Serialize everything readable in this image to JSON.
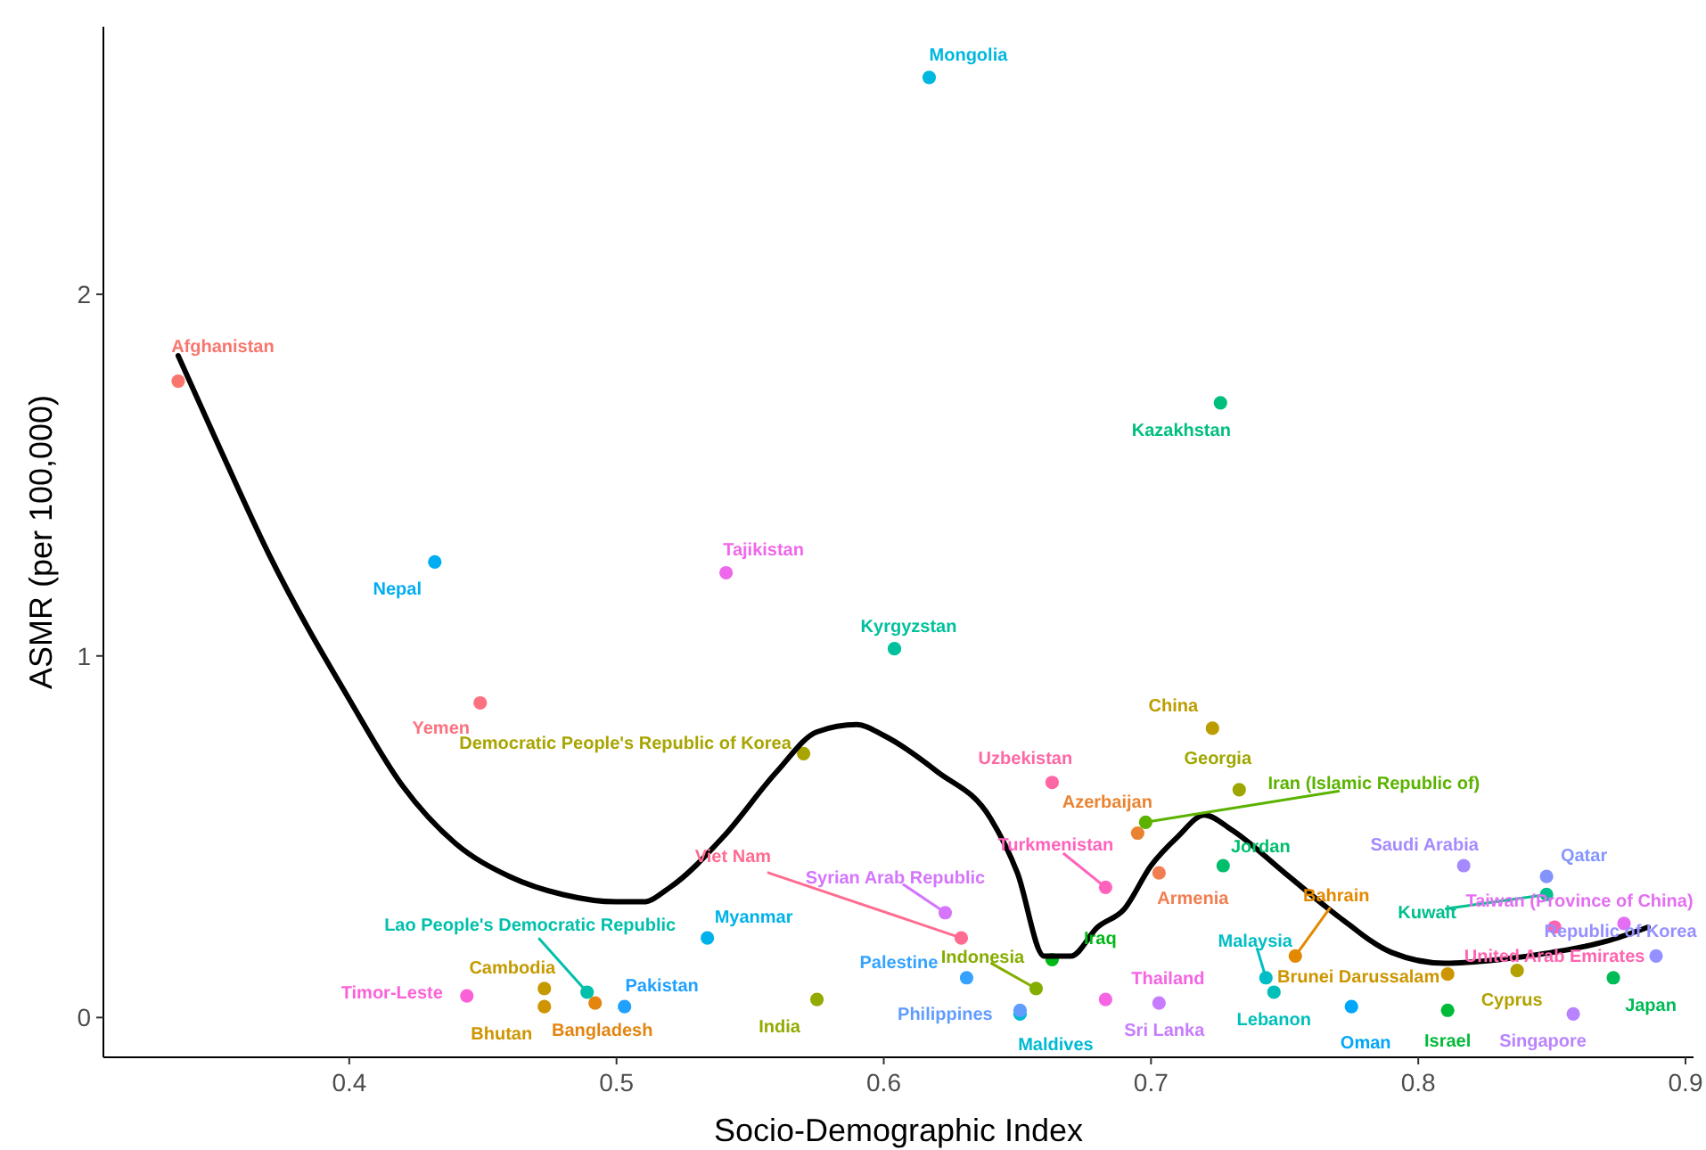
{
  "chart_data": {
    "type": "scatter",
    "xlabel": "Socio-Demographic Index",
    "ylabel": "ASMR (per 100,000)",
    "xlim": [
      0.308,
      0.903
    ],
    "ylim": [
      -0.11,
      2.74
    ],
    "xticks": [
      0.4,
      0.5,
      0.6,
      0.7,
      0.8,
      0.9
    ],
    "yticks": [
      0,
      1,
      2
    ],
    "marker": "circle",
    "series": [
      {
        "name": "Afghanistan",
        "color": "#f8766d",
        "x": [
          0.336
        ],
        "values": [
          1.76
        ]
      },
      {
        "name": "Armenia",
        "color": "#f17e50",
        "x": [
          0.703
        ],
        "values": [
          0.4
        ]
      },
      {
        "name": "Azerbaijan",
        "color": "#ea8331",
        "x": [
          0.695
        ],
        "values": [
          0.51
        ]
      },
      {
        "name": "Bahrain",
        "color": "#e38900",
        "x": [
          0.754
        ],
        "values": [
          0.17
        ]
      },
      {
        "name": "Bangladesh",
        "color": "#e3850f",
        "x": [
          0.492
        ],
        "values": [
          0.04
        ]
      },
      {
        "name": "Bhutan",
        "color": "#cf9500",
        "x": [
          0.473
        ],
        "values": [
          0.03
        ]
      },
      {
        "name": "Brunei Darussalam",
        "color": "#cd9600",
        "x": [
          0.811
        ],
        "values": [
          0.12
        ]
      },
      {
        "name": "Cambodia",
        "color": "#c49a00",
        "x": [
          0.473
        ],
        "values": [
          0.08
        ]
      },
      {
        "name": "China",
        "color": "#bb9d00",
        "x": [
          0.723
        ],
        "values": [
          0.8
        ]
      },
      {
        "name": "Cyprus",
        "color": "#b2a100",
        "x": [
          0.837
        ],
        "values": [
          0.13
        ]
      },
      {
        "name": "Democratic People's Republic of Korea",
        "color": "#a8a400",
        "x": [
          0.57
        ],
        "values": [
          0.73
        ]
      },
      {
        "name": "Georgia",
        "color": "#9ea700",
        "x": [
          0.733
        ],
        "values": [
          0.63
        ]
      },
      {
        "name": "India",
        "color": "#93aa00",
        "x": [
          0.575
        ],
        "values": [
          0.05
        ]
      },
      {
        "name": "Indonesia",
        "color": "#85ad00",
        "x": [
          0.657
        ],
        "values": [
          0.08
        ]
      },
      {
        "name": "Iran (Islamic Republic of)",
        "color": "#5bb300",
        "x": [
          0.698
        ],
        "values": [
          0.54
        ]
      },
      {
        "name": "Iraq",
        "color": "#00b816",
        "x": [
          0.663
        ],
        "values": [
          0.16
        ]
      },
      {
        "name": "Israel",
        "color": "#00ba38",
        "x": [
          0.811
        ],
        "values": [
          0.02
        ]
      },
      {
        "name": "Japan",
        "color": "#00bc56",
        "x": [
          0.873
        ],
        "values": [
          0.11
        ]
      },
      {
        "name": "Jordan",
        "color": "#00be6c",
        "x": [
          0.727
        ],
        "values": [
          0.42
        ]
      },
      {
        "name": "Kazakhstan",
        "color": "#00bf7d",
        "x": [
          0.726
        ],
        "values": [
          1.7
        ]
      },
      {
        "name": "Kuwait",
        "color": "#00c08d",
        "x": [
          0.848
        ],
        "values": [
          0.34
        ]
      },
      {
        "name": "Kyrgyzstan",
        "color": "#00c19c",
        "x": [
          0.604
        ],
        "values": [
          1.02
        ]
      },
      {
        "name": "Lao People's Democratic Republic",
        "color": "#00c0ab",
        "x": [
          0.489
        ],
        "values": [
          0.07
        ]
      },
      {
        "name": "Lebanon",
        "color": "#00bfb9",
        "x": [
          0.746
        ],
        "values": [
          0.07
        ]
      },
      {
        "name": "Malaysia",
        "color": "#00bdc6",
        "x": [
          0.743
        ],
        "values": [
          0.11
        ]
      },
      {
        "name": "Maldives",
        "color": "#00bad3",
        "x": [
          0.651
        ],
        "values": [
          0.01
        ]
      },
      {
        "name": "Mongolia",
        "color": "#00b7df",
        "x": [
          0.617
        ],
        "values": [
          2.6
        ]
      },
      {
        "name": "Myanmar",
        "color": "#00b2e9",
        "x": [
          0.534
        ],
        "values": [
          0.22
        ]
      },
      {
        "name": "Nepal",
        "color": "#00acf2",
        "x": [
          0.432
        ],
        "values": [
          1.26
        ]
      },
      {
        "name": "Oman",
        "color": "#00a6fa",
        "x": [
          0.775
        ],
        "values": [
          0.03
        ]
      },
      {
        "name": "Pakistan",
        "color": "#20a0ff",
        "x": [
          0.503
        ],
        "values": [
          0.03
        ]
      },
      {
        "name": "Palestine",
        "color": "#35a2ff",
        "x": [
          0.631
        ],
        "values": [
          0.11
        ]
      },
      {
        "name": "Philippines",
        "color": "#619cff",
        "x": [
          0.651
        ],
        "values": [
          0.02
        ]
      },
      {
        "name": "Qatar",
        "color": "#8494ff",
        "x": [
          0.848
        ],
        "values": [
          0.39
        ]
      },
      {
        "name": "Republic of Korea",
        "color": "#9590ff",
        "x": [
          0.889
        ],
        "values": [
          0.17
        ]
      },
      {
        "name": "Saudi Arabia",
        "color": "#a58aff",
        "x": [
          0.817
        ],
        "values": [
          0.42
        ]
      },
      {
        "name": "Singapore",
        "color": "#b983ff",
        "x": [
          0.858
        ],
        "values": [
          0.01
        ]
      },
      {
        "name": "Sri Lanka",
        "color": "#c77cff",
        "x": [
          0.703
        ],
        "values": [
          0.04
        ]
      },
      {
        "name": "Syrian Arab Republic",
        "color": "#d475fc",
        "x": [
          0.623
        ],
        "values": [
          0.29
        ]
      },
      {
        "name": "Taiwan (Province of China)",
        "color": "#e36ef2",
        "x": [
          0.877
        ],
        "values": [
          0.26
        ]
      },
      {
        "name": "Tajikistan",
        "color": "#ef67eb",
        "x": [
          0.541
        ],
        "values": [
          1.23
        ]
      },
      {
        "name": "Thailand",
        "color": "#f564e3",
        "x": [
          0.683
        ],
        "values": [
          0.05
        ]
      },
      {
        "name": "Timor-Leste",
        "color": "#fb61d7",
        "x": [
          0.444
        ],
        "values": [
          0.06
        ]
      },
      {
        "name": "Turkmenistan",
        "color": "#ff62bc",
        "x": [
          0.683
        ],
        "values": [
          0.36
        ]
      },
      {
        "name": "United Arab Emirates",
        "color": "#ff64b0",
        "x": [
          0.851
        ],
        "values": [
          0.25
        ]
      },
      {
        "name": "Uzbekistan",
        "color": "#ff67a4",
        "x": [
          0.663
        ],
        "values": [
          0.65
        ]
      },
      {
        "name": "Viet Nam",
        "color": "#ff6c91",
        "x": [
          0.629
        ],
        "values": [
          0.22
        ]
      },
      {
        "name": "Yemen",
        "color": "#fc717f",
        "x": [
          0.449
        ],
        "values": [
          0.87
        ]
      },
      {
        "type": "line",
        "marker": "none",
        "color": "#000000",
        "x": [
          0.336,
          0.35,
          0.37,
          0.4,
          0.42,
          0.44,
          0.46,
          0.48,
          0.5,
          0.51,
          0.52,
          0.54,
          0.56,
          0.575,
          0.59,
          0.6,
          0.62,
          0.64,
          0.65,
          0.66,
          0.67,
          0.68,
          0.69,
          0.7,
          0.71,
          0.72,
          0.73,
          0.75,
          0.77,
          0.79,
          0.81,
          0.83,
          0.85,
          0.87,
          0.886
        ],
        "values": [
          1.83,
          1.6,
          1.28,
          0.88,
          0.64,
          0.48,
          0.39,
          0.34,
          0.32,
          0.32,
          0.36,
          0.5,
          0.68,
          0.79,
          0.81,
          0.78,
          0.68,
          0.55,
          0.4,
          0.17,
          0.17,
          0.25,
          0.3,
          0.42,
          0.5,
          0.56,
          0.52,
          0.4,
          0.28,
          0.18,
          0.15,
          0.16,
          0.18,
          0.21,
          0.25
        ]
      }
    ]
  }
}
